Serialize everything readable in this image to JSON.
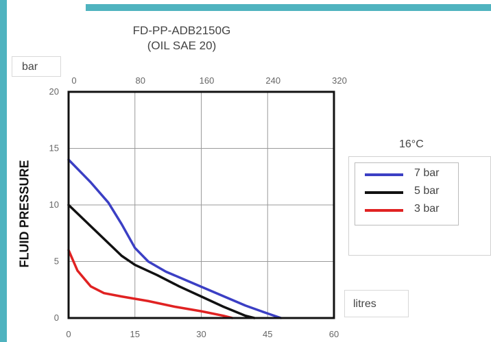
{
  "chart_data": {
    "type": "line",
    "title": "FD-PP-ADB2150G",
    "subtitle": "(OIL SAE 20)",
    "ylabel": "FLUID PRESSURE",
    "y_unit": "bar",
    "x_unit": "litres",
    "legend_title": "16°C",
    "xlim": [
      0,
      60
    ],
    "ylim": [
      0,
      20
    ],
    "x_ticks": [
      "0",
      "15",
      "30",
      "45",
      "60"
    ],
    "x2_ticks": [
      "0",
      "80",
      "160",
      "240",
      "320"
    ],
    "y_ticks": [
      "0",
      "5",
      "10",
      "15",
      "20"
    ],
    "grid": true,
    "legend_position": "right",
    "series": [
      {
        "name": "7 bar",
        "color": "#3b3fc4",
        "x": [
          0,
          5,
          9,
          12,
          15,
          18,
          22,
          28,
          34,
          40,
          45,
          48
        ],
        "y": [
          14,
          12,
          10.2,
          8.3,
          6.2,
          5.0,
          4.1,
          3.1,
          2.1,
          1.1,
          0.4,
          0
        ]
      },
      {
        "name": "5 bar",
        "color": "#111111",
        "x": [
          0,
          4,
          8,
          12,
          15,
          20,
          25,
          30,
          35,
          40,
          42
        ],
        "y": [
          10,
          8.5,
          7.0,
          5.5,
          4.7,
          3.8,
          2.8,
          1.9,
          1.0,
          0.2,
          0
        ]
      },
      {
        "name": "3 bar",
        "color": "#e02222",
        "x": [
          0,
          2,
          5,
          8,
          12,
          18,
          24,
          30,
          35,
          37
        ],
        "y": [
          6,
          4.2,
          2.8,
          2.2,
          1.9,
          1.5,
          1.0,
          0.6,
          0.2,
          0
        ]
      }
    ]
  }
}
